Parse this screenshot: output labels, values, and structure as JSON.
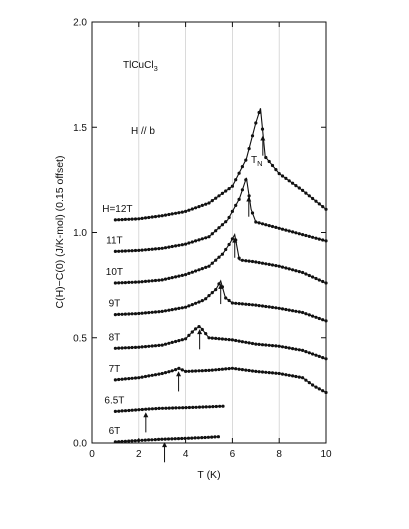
{
  "chart_data": {
    "type": "line",
    "title": "",
    "xlabel": "T (K)",
    "ylabel": "C(H)−C(0) (J/K-mol) (0.15 offset)",
    "xlim": [
      0,
      10
    ],
    "ylim": [
      0,
      2.0
    ],
    "x_ticks": [
      0,
      2,
      4,
      6,
      8,
      10
    ],
    "y_ticks": [
      0.0,
      0.5,
      1.0,
      1.5,
      2.0
    ],
    "y_tick_labels": [
      "0.0",
      "0.5",
      "1.0",
      "1.5",
      "2.0"
    ],
    "grid": "vertical",
    "annotations": {
      "compound": "TlCuCl",
      "compound_sub": "3",
      "field_direction": "H // b",
      "tn_label": "T",
      "tn_sub": "N"
    },
    "series": [
      {
        "label": "6T",
        "x": [
          1.0,
          2.0,
          3.0,
          4.0,
          5.0,
          5.4
        ],
        "y": [
          0.005,
          0.012,
          0.018,
          0.022,
          0.027,
          0.03
        ],
        "arrow_x": 3.1
      },
      {
        "label": "6.5T",
        "x": [
          1.0,
          2.0,
          2.5,
          3.0,
          4.0,
          5.0,
          5.6
        ],
        "y": [
          0.15,
          0.158,
          0.162,
          0.165,
          0.168,
          0.172,
          0.175
        ],
        "arrow_x": 2.3
      },
      {
        "label": "7T",
        "x": [
          1.0,
          2.0,
          3.0,
          3.5,
          3.7,
          4.0,
          5.0,
          6.0,
          7.0,
          8.0,
          9.0,
          9.5,
          10.0
        ],
        "y": [
          0.3,
          0.31,
          0.33,
          0.345,
          0.355,
          0.34,
          0.345,
          0.355,
          0.34,
          0.33,
          0.31,
          0.27,
          0.24
        ],
        "arrow_x": 3.7
      },
      {
        "label": "8T",
        "x": [
          1.0,
          2.0,
          3.0,
          4.0,
          4.4,
          4.6,
          5.0,
          6.0,
          7.0,
          8.0,
          9.0,
          10.0
        ],
        "y": [
          0.45,
          0.455,
          0.465,
          0.495,
          0.54,
          0.555,
          0.5,
          0.49,
          0.47,
          0.46,
          0.44,
          0.4
        ],
        "arrow_x": 4.6
      },
      {
        "label": "9T",
        "x": [
          1.0,
          2.0,
          3.0,
          4.0,
          4.8,
          5.3,
          5.5,
          5.7,
          6.0,
          7.0,
          8.0,
          9.0,
          10.0
        ],
        "y": [
          0.61,
          0.615,
          0.625,
          0.645,
          0.68,
          0.73,
          0.77,
          0.69,
          0.665,
          0.655,
          0.64,
          0.62,
          0.58
        ],
        "arrow_x": 5.5
      },
      {
        "label": "10T",
        "x": [
          1.0,
          2.0,
          3.0,
          4.0,
          5.0,
          5.6,
          5.9,
          6.1,
          6.3,
          7.0,
          8.0,
          9.0,
          10.0
        ],
        "y": [
          0.76,
          0.765,
          0.775,
          0.8,
          0.84,
          0.9,
          0.95,
          0.99,
          0.87,
          0.86,
          0.84,
          0.81,
          0.76
        ],
        "arrow_x": 6.1
      },
      {
        "label": "11T",
        "x": [
          1.0,
          2.0,
          3.0,
          4.0,
          5.0,
          5.8,
          6.3,
          6.6,
          6.8,
          7.0,
          8.0,
          9.0,
          10.0
        ],
        "y": [
          0.91,
          0.915,
          0.925,
          0.945,
          0.98,
          1.06,
          1.16,
          1.26,
          1.11,
          1.05,
          1.02,
          0.99,
          0.96
        ],
        "arrow_x": 6.7
      },
      {
        "label": "H=12T",
        "x": [
          1.0,
          2.0,
          3.0,
          4.0,
          5.0,
          6.0,
          6.6,
          7.0,
          7.2,
          7.4,
          8.0,
          9.0,
          10.0
        ],
        "y": [
          1.06,
          1.065,
          1.08,
          1.1,
          1.14,
          1.22,
          1.35,
          1.52,
          1.59,
          1.36,
          1.28,
          1.2,
          1.11
        ],
        "arrow_x": 7.3
      }
    ]
  }
}
